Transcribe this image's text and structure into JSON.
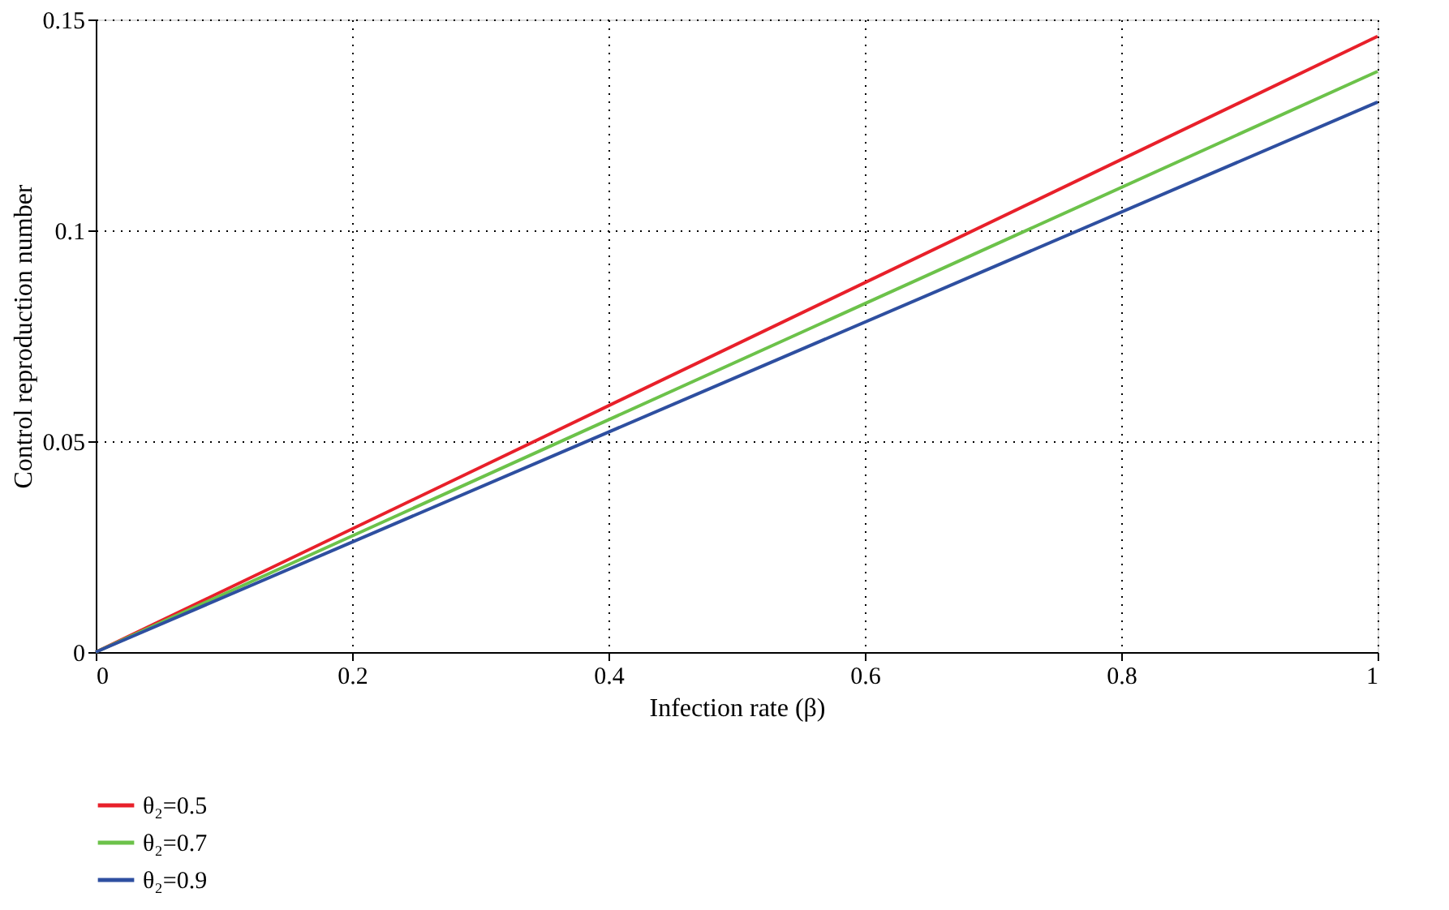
{
  "chart_data": {
    "type": "line",
    "xlabel": "Infection rate (β)",
    "ylabel": "Control reproduction number",
    "x": [
      0,
      1
    ],
    "series": [
      {
        "name": "θ₂=0.5",
        "color": "#e8202a",
        "values": [
          0,
          0.146
        ]
      },
      {
        "name": "θ₂=0.7",
        "color": "#6cc24a",
        "values": [
          0,
          0.1377
        ]
      },
      {
        "name": "θ₂=0.9",
        "color": "#2e4fa0",
        "values": [
          0,
          0.1304
        ]
      }
    ],
    "xlim": [
      0,
      1
    ],
    "ylim": [
      0,
      0.15
    ],
    "xticks": [
      0,
      0.2,
      0.4,
      0.6,
      0.8,
      1
    ],
    "yticks": [
      0,
      0.05,
      0.1,
      0.15
    ],
    "grid": true,
    "legend": "bottom left",
    "line_style": "solid",
    "marker": "none"
  }
}
